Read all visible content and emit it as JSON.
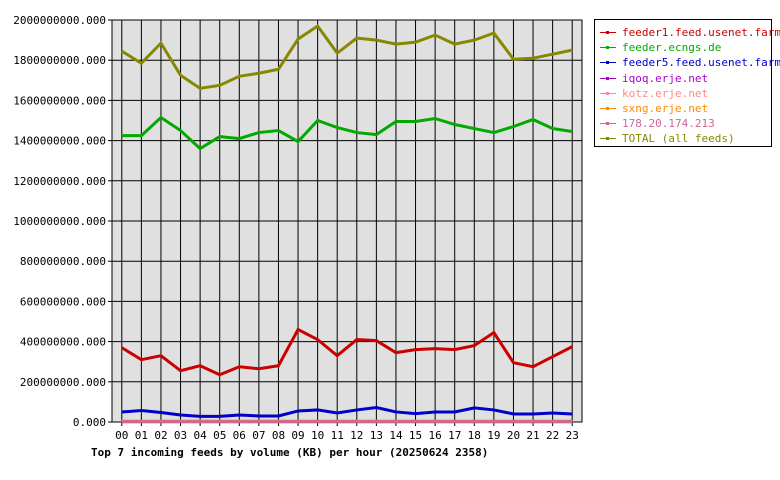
{
  "chart_data": {
    "type": "line",
    "title": "Top 7 incoming feeds by volume (KB) per hour (20250624 2358)",
    "xlabel": "",
    "ylabel": "",
    "categories": [
      "00",
      "01",
      "02",
      "03",
      "04",
      "05",
      "06",
      "07",
      "08",
      "09",
      "10",
      "11",
      "12",
      "13",
      "14",
      "15",
      "16",
      "17",
      "18",
      "19",
      "20",
      "21",
      "22",
      "23"
    ],
    "ylim": [
      0,
      2000000000
    ],
    "yticks": [
      0,
      200000000,
      400000000,
      600000000,
      800000000,
      1000000000,
      1200000000,
      1400000000,
      1600000000,
      1800000000,
      2000000000
    ],
    "ytick_labels": [
      "0.000",
      "200000000.000",
      "400000000.000",
      "600000000.000",
      "800000000.000",
      "1000000000.000",
      "1200000000.000",
      "1400000000.000",
      "1600000000.000",
      "1800000000.000",
      "2000000000.000"
    ],
    "grid": true,
    "legend_position": "top-right",
    "series": [
      {
        "name": "feeder1.feed.usenet.farm",
        "color": "#cc0000",
        "values": [
          370000000,
          310000000,
          330000000,
          255000000,
          280000000,
          235000000,
          275000000,
          265000000,
          280000000,
          460000000,
          410000000,
          330000000,
          410000000,
          405000000,
          345000000,
          360000000,
          365000000,
          360000000,
          380000000,
          445000000,
          295000000,
          275000000,
          325000000,
          375000000
        ]
      },
      {
        "name": "feeder.ecngs.de",
        "color": "#00aa00",
        "values": [
          1425000000,
          1425000000,
          1515000000,
          1450000000,
          1360000000,
          1420000000,
          1410000000,
          1440000000,
          1450000000,
          1395000000,
          1500000000,
          1465000000,
          1440000000,
          1430000000,
          1495000000,
          1495000000,
          1510000000,
          1480000000,
          1460000000,
          1440000000,
          1470000000,
          1505000000,
          1460000000,
          1445000000
        ]
      },
      {
        "name": "feeder5.feed.usenet.farm",
        "color": "#0000cc",
        "values": [
          50000000,
          57000000,
          47000000,
          35000000,
          28000000,
          28000000,
          35000000,
          30000000,
          30000000,
          55000000,
          60000000,
          45000000,
          60000000,
          72000000,
          50000000,
          42000000,
          50000000,
          50000000,
          70000000,
          60000000,
          40000000,
          40000000,
          45000000,
          40000000
        ]
      },
      {
        "name": "iqoq.erje.net",
        "color": "#aa00cc",
        "values": [
          2000000,
          2000000,
          2000000,
          2000000,
          2000000,
          2000000,
          2000000,
          2000000,
          2000000,
          2000000,
          2000000,
          2000000,
          2000000,
          2000000,
          2000000,
          2000000,
          2000000,
          2000000,
          2000000,
          2000000,
          2000000,
          2000000,
          2000000,
          2000000
        ]
      },
      {
        "name": "kotz.erje.net",
        "color": "#ff8888",
        "values": [
          3000000,
          3000000,
          3000000,
          3000000,
          3000000,
          3000000,
          3000000,
          3000000,
          3000000,
          3000000,
          3000000,
          3000000,
          3000000,
          3000000,
          3000000,
          3000000,
          3000000,
          3000000,
          3000000,
          3000000,
          3000000,
          3000000,
          3000000,
          3000000
        ]
      },
      {
        "name": "sxng.erje.net",
        "color": "#ff8800",
        "values": [
          4000000,
          4000000,
          4000000,
          4000000,
          4000000,
          4000000,
          4000000,
          4000000,
          4000000,
          4000000,
          4000000,
          4000000,
          4000000,
          4000000,
          4000000,
          4000000,
          4000000,
          4000000,
          4000000,
          4000000,
          4000000,
          4000000,
          4000000,
          4000000
        ]
      },
      {
        "name": "178.20.174.213",
        "color": "#cc6699",
        "values": [
          1000000,
          1000000,
          1000000,
          1000000,
          1000000,
          1000000,
          1000000,
          1000000,
          1000000,
          1000000,
          1000000,
          1000000,
          1000000,
          1000000,
          1000000,
          1000000,
          1000000,
          1000000,
          1000000,
          1000000,
          1000000,
          1000000,
          1000000,
          1000000
        ]
      },
      {
        "name": "TOTAL (all feeds)",
        "color": "#888800",
        "values": [
          1845000000,
          1785000000,
          1885000000,
          1725000000,
          1660000000,
          1675000000,
          1720000000,
          1735000000,
          1755000000,
          1905000000,
          1970000000,
          1835000000,
          1910000000,
          1900000000,
          1880000000,
          1890000000,
          1925000000,
          1880000000,
          1900000000,
          1935000000,
          1805000000,
          1810000000,
          1830000000,
          1850000000
        ]
      }
    ]
  }
}
